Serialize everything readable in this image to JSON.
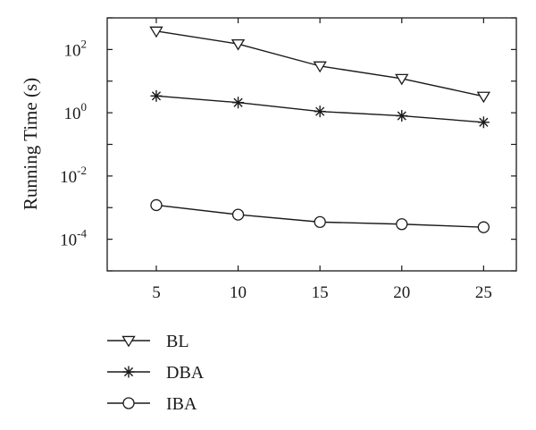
{
  "chart_data": {
    "type": "line",
    "title": "",
    "xlabel": "",
    "ylabel": "Running Time (s)",
    "y_scale": "log",
    "ylim": [
      1e-05,
      1000
    ],
    "xlim": [
      2,
      27
    ],
    "grid": false,
    "legend_position": "below",
    "x": [
      5,
      10,
      15,
      20,
      25
    ],
    "x_ticks": [
      "5",
      "10",
      "15",
      "20",
      "25"
    ],
    "y_ticks": [
      {
        "value": 0.0001,
        "base": "10",
        "exp": "-4"
      },
      {
        "value": 0.01,
        "base": "10",
        "exp": "-2"
      },
      {
        "value": 1,
        "base": "10",
        "exp": "0"
      },
      {
        "value": 100,
        "base": "10",
        "exp": "2"
      }
    ],
    "series": [
      {
        "name": "BL",
        "marker": "triangle-down",
        "values": [
          380,
          150,
          30,
          12,
          3.3
        ]
      },
      {
        "name": "DBA",
        "marker": "asterisk",
        "values": [
          3.4,
          2.1,
          1.1,
          0.8,
          0.5
        ]
      },
      {
        "name": "IBA",
        "marker": "circle",
        "values": [
          0.0012,
          0.0006,
          0.00035,
          0.0003,
          0.00024
        ]
      }
    ],
    "colors": {
      "line": "#1a1a1a",
      "background": "#ffffff"
    }
  }
}
